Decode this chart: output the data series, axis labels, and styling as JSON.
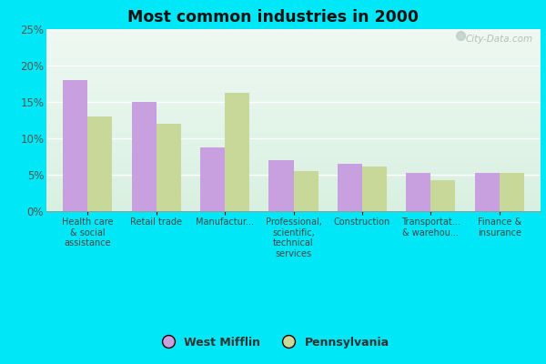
{
  "title": "Most common industries in 2000",
  "categories": [
    "Health care\n& social\nassistance",
    "Retail trade",
    "Manufactur...",
    "Professional,\nscientific,\ntechnical\nservices",
    "Construction",
    "Transportat...\n& warehou...",
    "Finance &\ninsurance"
  ],
  "west_mifflin": [
    18.0,
    15.0,
    8.7,
    7.0,
    6.5,
    5.3,
    5.3
  ],
  "pennsylvania": [
    13.0,
    12.0,
    16.2,
    5.5,
    6.1,
    4.3,
    5.2
  ],
  "wm_color": "#c8a0e0",
  "pa_color": "#c8d898",
  "outer_bg": "#00e8f8",
  "ylim": [
    0,
    25
  ],
  "yticks": [
    0,
    5,
    10,
    15,
    20,
    25
  ],
  "ytick_labels": [
    "0%",
    "5%",
    "10%",
    "15%",
    "20%",
    "25%"
  ],
  "legend_wm": "West Mifflin",
  "legend_pa": "Pennsylvania",
  "watermark": "City-Data.com",
  "bg_top": "#eef8f2",
  "bg_bottom": "#d8f0e0"
}
